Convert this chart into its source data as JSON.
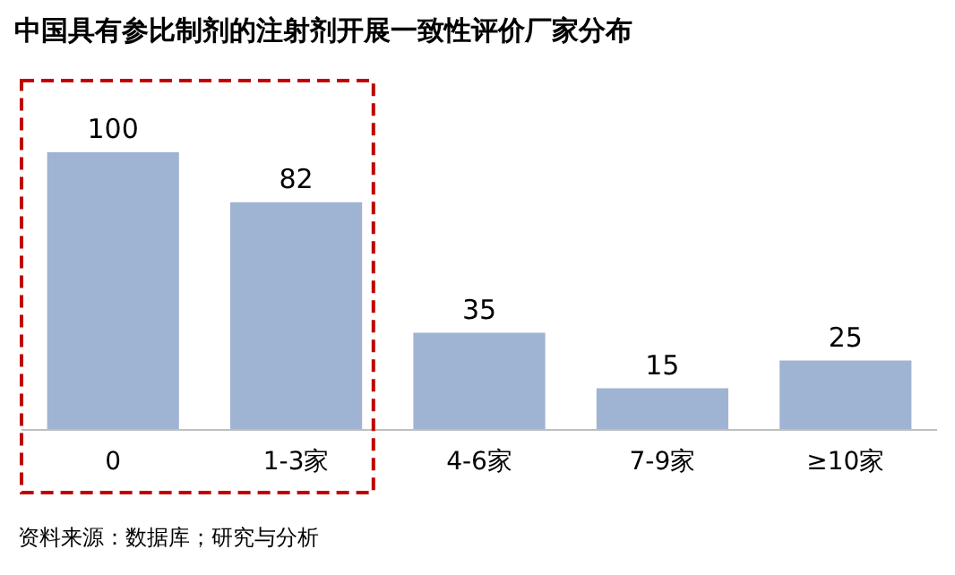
{
  "chart_data": {
    "type": "bar",
    "title": "中国具有参比制剂的注射剂开展一致性评价厂家分布",
    "categories": [
      "0",
      "1-3家",
      "4-6家",
      "7-9家",
      "≥10家"
    ],
    "values": [
      100,
      82,
      35,
      15,
      25
    ],
    "color": "#9fb3d3",
    "data_labels": true,
    "annotations": [
      "资料来源：数据库；研究与分析"
    ]
  }
}
